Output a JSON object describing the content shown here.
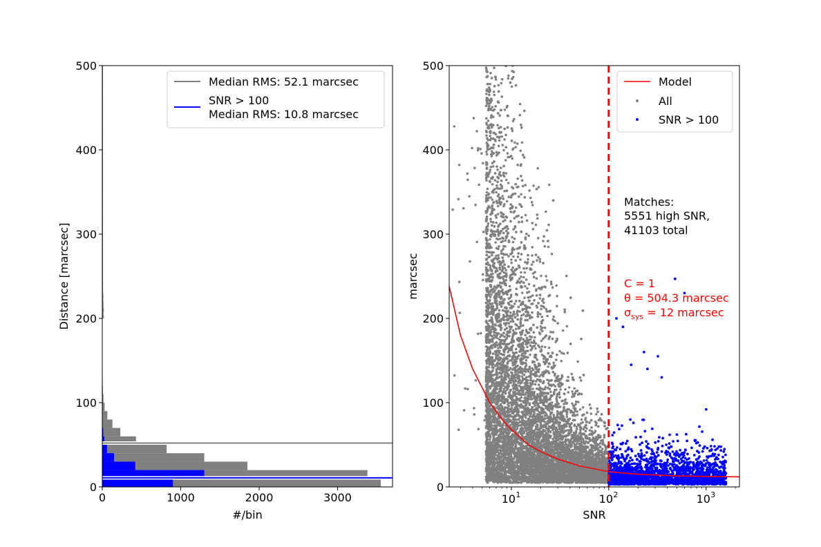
{
  "chart_data": [
    {
      "type": "bar",
      "orientation": "horizontal",
      "xlabel": "#/bin",
      "ylabel": "Distance [marcsec]",
      "xlim": [
        0,
        3700
      ],
      "ylim": [
        0,
        500
      ],
      "xticks": [
        0,
        1000,
        2000,
        3000
      ],
      "yticks": [
        0,
        100,
        200,
        300,
        400,
        500
      ],
      "legend_position": "top-right",
      "series": [
        {
          "name": "All",
          "color": "#808080",
          "bin_width": 10,
          "counts": [
            3550,
            3380,
            1850,
            1300,
            820,
            430,
            230,
            130,
            65,
            30,
            15,
            8,
            5,
            3,
            2,
            1,
            1,
            1,
            0,
            0
          ]
        },
        {
          "name": "SNR > 100",
          "color": "#0000ff",
          "bin_width": 10,
          "counts": [
            900,
            1300,
            420,
            150,
            60,
            25,
            12
          ]
        }
      ],
      "lines": [
        {
          "label": "Median RMS: 52.1 marcsec",
          "value": 52.1,
          "color": "#808080"
        },
        {
          "label_line1": "SNR > 100",
          "label_line2": "Median RMS: 10.8 marcsec",
          "value": 10.8,
          "color": "#0000ff"
        }
      ]
    },
    {
      "type": "scatter",
      "xlabel": "SNR",
      "ylabel": "marcsec",
      "xscale": "log",
      "xlim": [
        2.3,
        2200
      ],
      "ylim": [
        0,
        500
      ],
      "xticks": [
        10,
        100,
        1000
      ],
      "yticks": [
        0,
        100,
        200,
        300,
        400,
        500
      ],
      "legend_position": "top-right",
      "legend": [
        "Model",
        "All",
        "SNR > 100"
      ],
      "series": [
        {
          "name": "All",
          "color": "#808080",
          "count": 41103
        },
        {
          "name": "SNR > 100",
          "color": "#0000ff",
          "count": 5551
        }
      ],
      "model_curve": {
        "label": "Model",
        "color": "#ff0000",
        "points": [
          [
            2.3,
            238
          ],
          [
            3,
            180
          ],
          [
            4,
            140
          ],
          [
            5,
            118
          ],
          [
            6,
            100
          ],
          [
            8,
            80
          ],
          [
            10,
            68
          ],
          [
            15,
            50
          ],
          [
            20,
            42
          ],
          [
            30,
            33
          ],
          [
            50,
            25
          ],
          [
            100,
            18
          ],
          [
            200,
            15
          ],
          [
            500,
            13
          ],
          [
            1000,
            12.5
          ],
          [
            2200,
            12
          ]
        ]
      },
      "threshold": {
        "x": 100,
        "color": "#ff0000"
      },
      "annotations": {
        "matches": [
          "Matches:",
          "5551 high SNR,",
          "41103 total"
        ],
        "model": [
          "C = 1",
          "θ = 504.3 marcsec",
          "σ",
          "sys",
          " = 12 marcsec"
        ]
      }
    }
  ]
}
